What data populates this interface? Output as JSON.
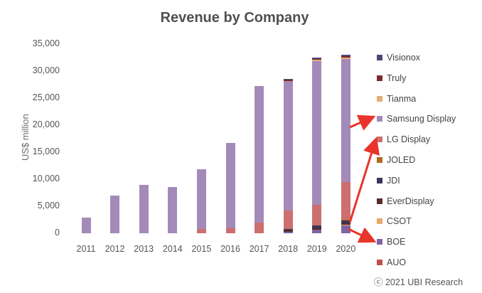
{
  "chart_data": {
    "type": "bar",
    "stacked": true,
    "title": "Revenue by Company",
    "ylabel": "US$ million",
    "xlabel": "",
    "ylim": [
      0,
      35000
    ],
    "yticks": [
      "35,000",
      "30,000",
      "25,000",
      "20,000",
      "15,000",
      "10,000",
      "5,000",
      "0"
    ],
    "ytick_values": [
      35000,
      30000,
      25000,
      20000,
      15000,
      10000,
      5000,
      0
    ],
    "categories": [
      "2011",
      "2012",
      "2013",
      "2014",
      "2015",
      "2016",
      "2017",
      "2018",
      "2019",
      "2020"
    ],
    "series": [
      {
        "name": "AUO",
        "color": "#c0504d",
        "values": [
          0,
          0,
          0,
          0,
          0,
          0,
          0,
          0,
          0,
          0
        ]
      },
      {
        "name": "BOE",
        "color": "#8064a2",
        "values": [
          0,
          0,
          0,
          0,
          0,
          0,
          0,
          300,
          600,
          1500
        ]
      },
      {
        "name": "CSOT",
        "color": "#e9a96a",
        "values": [
          0,
          0,
          0,
          0,
          0,
          0,
          0,
          0,
          0,
          100
        ]
      },
      {
        "name": "EverDisplay",
        "color": "#5b2a2a",
        "values": [
          0,
          0,
          0,
          0,
          0,
          0,
          0,
          200,
          300,
          300
        ]
      },
      {
        "name": "JDI",
        "color": "#3b3659",
        "values": [
          0,
          0,
          0,
          0,
          0,
          0,
          0,
          300,
          500,
          500
        ]
      },
      {
        "name": "JOLED",
        "color": "#b06a1f",
        "values": [
          0,
          0,
          0,
          0,
          0,
          0,
          0,
          0,
          0,
          100
        ]
      },
      {
        "name": "LG Display",
        "color": "#cd6f6f",
        "values": [
          0,
          0,
          0,
          0,
          800,
          900,
          2000,
          3400,
          3800,
          7000
        ]
      },
      {
        "name": "Samsung Display",
        "color": "#a48ab8",
        "values": [
          2900,
          7000,
          8900,
          8600,
          11000,
          15800,
          25300,
          24000,
          26700,
          22800
        ]
      },
      {
        "name": "Tianma",
        "color": "#e6ad78",
        "values": [
          0,
          0,
          0,
          0,
          0,
          0,
          0,
          0,
          200,
          200
        ]
      },
      {
        "name": "Truly",
        "color": "#7b2b2b",
        "values": [
          0,
          0,
          0,
          0,
          0,
          0,
          0,
          200,
          200,
          200
        ]
      },
      {
        "name": "Visionox",
        "color": "#4b4a75",
        "values": [
          0,
          0,
          0,
          0,
          0,
          0,
          0,
          100,
          200,
          300
        ]
      }
    ],
    "legend_order": [
      "Visionox",
      "Truly",
      "Tianma",
      "Samsung Display",
      "LG Display",
      "JOLED",
      "JDI",
      "EverDisplay",
      "CSOT",
      "BOE",
      "AUO"
    ],
    "legend_position": "right",
    "annotations": [
      "red arrows pointing at Samsung Display, LG Display and BOE"
    ],
    "arrow_color": "#e8342a"
  },
  "copyright": "ⓒ 2021 UBI Research"
}
